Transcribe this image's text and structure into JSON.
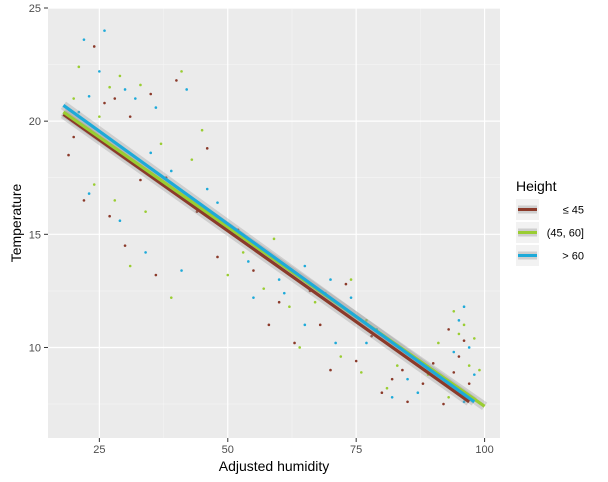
{
  "chart_data": {
    "type": "scatter",
    "title": "",
    "xlabel": "Adjusted humidity",
    "ylabel": "Temperature",
    "xlim": [
      15,
      103
    ],
    "ylim": [
      6,
      25
    ],
    "xticks": [
      25,
      50,
      75,
      100
    ],
    "yticks": [
      10,
      15,
      20,
      25
    ],
    "grid": true,
    "legend": {
      "title": "Height",
      "placement": "right"
    },
    "series": [
      {
        "name": "≤ 45",
        "color": "#8b3a2a",
        "trend": {
          "x": [
            18,
            97
          ],
          "y": [
            20.3,
            7.6
          ]
        },
        "points": [
          [
            20,
            19.3
          ],
          [
            24,
            23.3
          ],
          [
            28,
            21.0
          ],
          [
            31,
            20.2
          ],
          [
            22,
            16.5
          ],
          [
            27,
            15.8
          ],
          [
            35,
            21.2
          ],
          [
            38,
            17.5
          ],
          [
            40,
            21.8
          ],
          [
            44,
            16.0
          ],
          [
            30,
            14.5
          ],
          [
            36,
            13.2
          ],
          [
            48,
            14.0
          ],
          [
            55,
            13.4
          ],
          [
            60,
            12.0
          ],
          [
            63,
            10.2
          ],
          [
            68,
            11.0
          ],
          [
            70,
            9.0
          ],
          [
            73,
            12.8
          ],
          [
            78,
            10.5
          ],
          [
            80,
            8.0
          ],
          [
            84,
            9.0
          ],
          [
            88,
            8.4
          ],
          [
            90,
            9.3
          ],
          [
            92,
            7.5
          ],
          [
            94,
            8.9
          ],
          [
            95,
            9.6
          ],
          [
            96,
            10.3
          ],
          [
            97,
            8.4
          ],
          [
            85,
            7.6
          ],
          [
            66,
            12.5
          ],
          [
            58,
            11.0
          ],
          [
            52,
            15.2
          ],
          [
            46,
            18.8
          ],
          [
            26,
            20.8
          ],
          [
            33,
            17.4
          ],
          [
            75,
            9.4
          ],
          [
            82,
            8.6
          ],
          [
            93,
            10.8
          ],
          [
            19,
            18.5
          ]
        ]
      },
      {
        "name": "(45, 60]",
        "color": "#9acd32",
        "trend": {
          "x": [
            18,
            100
          ],
          "y": [
            20.4,
            7.4
          ]
        },
        "points": [
          [
            21,
            22.4
          ],
          [
            25,
            20.2
          ],
          [
            29,
            22.0
          ],
          [
            33,
            21.6
          ],
          [
            24,
            17.2
          ],
          [
            28,
            16.5
          ],
          [
            37,
            19.0
          ],
          [
            41,
            22.2
          ],
          [
            43,
            18.3
          ],
          [
            47,
            15.8
          ],
          [
            31,
            13.6
          ],
          [
            39,
            12.2
          ],
          [
            50,
            13.2
          ],
          [
            57,
            12.6
          ],
          [
            62,
            11.8
          ],
          [
            64,
            10.0
          ],
          [
            69,
            12.4
          ],
          [
            72,
            9.6
          ],
          [
            74,
            13.0
          ],
          [
            77,
            11.2
          ],
          [
            81,
            8.2
          ],
          [
            86,
            9.6
          ],
          [
            89,
            8.8
          ],
          [
            91,
            10.2
          ],
          [
            93,
            7.8
          ],
          [
            95,
            10.6
          ],
          [
            96,
            11.0
          ],
          [
            97,
            9.2
          ],
          [
            98,
            10.4
          ],
          [
            99,
            9.0
          ],
          [
            67,
            12.0
          ],
          [
            59,
            14.8
          ],
          [
            53,
            14.2
          ],
          [
            45,
            19.6
          ],
          [
            27,
            21.5
          ],
          [
            34,
            16.0
          ],
          [
            76,
            8.9
          ],
          [
            83,
            9.2
          ],
          [
            94,
            11.6
          ],
          [
            20,
            21.0
          ]
        ]
      },
      {
        "name": "> 60",
        "color": "#1eaad9",
        "trend": {
          "x": [
            18,
            98
          ],
          "y": [
            20.7,
            7.6
          ]
        },
        "points": [
          [
            22,
            23.6
          ],
          [
            23,
            21.1
          ],
          [
            26,
            24.0
          ],
          [
            30,
            21.4
          ],
          [
            32,
            21.0
          ],
          [
            23,
            16.8
          ],
          [
            29,
            15.6
          ],
          [
            36,
            20.6
          ],
          [
            39,
            17.8
          ],
          [
            42,
            21.4
          ],
          [
            46,
            17.0
          ],
          [
            34,
            14.2
          ],
          [
            41,
            13.4
          ],
          [
            49,
            15.6
          ],
          [
            54,
            13.8
          ],
          [
            61,
            12.4
          ],
          [
            65,
            11.0
          ],
          [
            70,
            13.0
          ],
          [
            71,
            10.2
          ],
          [
            74,
            12.2
          ],
          [
            79,
            10.8
          ],
          [
            82,
            7.8
          ],
          [
            87,
            8.0
          ],
          [
            90,
            9.0
          ],
          [
            92,
            8.6
          ],
          [
            95,
            11.2
          ],
          [
            96,
            11.8
          ],
          [
            97,
            10.0
          ],
          [
            98,
            8.8
          ],
          [
            96,
            7.6
          ],
          [
            65,
            13.6
          ],
          [
            60,
            13.0
          ],
          [
            55,
            12.2
          ],
          [
            48,
            16.4
          ],
          [
            25,
            22.2
          ],
          [
            35,
            18.6
          ],
          [
            77,
            10.2
          ],
          [
            85,
            8.6
          ],
          [
            94,
            9.8
          ],
          [
            21,
            20.4
          ]
        ]
      }
    ]
  }
}
